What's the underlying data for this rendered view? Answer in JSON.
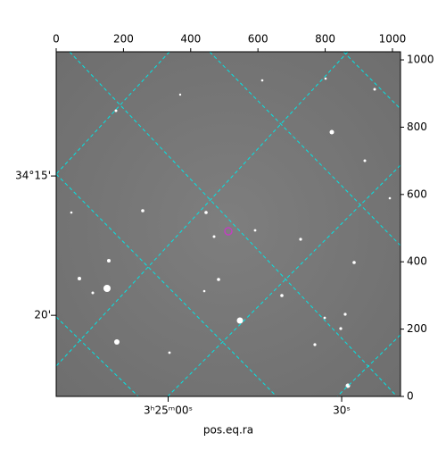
{
  "chart_data": {
    "type": "image",
    "xlabel": "pos.eq.ra",
    "xlim": [
      0,
      1024
    ],
    "ylim": [
      0,
      1024
    ],
    "xticks": [
      0,
      200,
      400,
      600,
      800,
      1000
    ],
    "yticks": [
      0,
      200,
      400,
      600,
      800,
      1000
    ],
    "ra_ticks": [
      {
        "value": 333,
        "label": "3ʰ25ᵐ00ˢ"
      },
      {
        "value": 849,
        "label": "30ˢ"
      }
    ],
    "dec_ticks": [
      {
        "value": 655,
        "label": "34°15'"
      },
      {
        "value": 241,
        "label": "20'"
      }
    ],
    "grid_color": "#00e5e5"
  }
}
